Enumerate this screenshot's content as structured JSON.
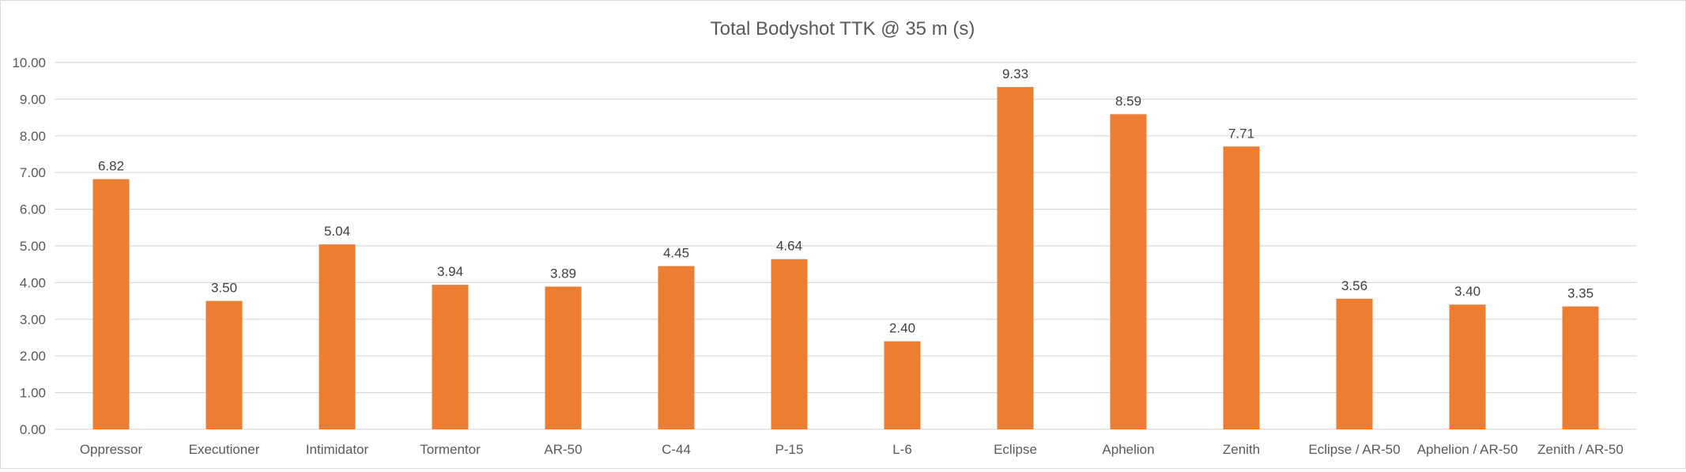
{
  "chart_data": {
    "type": "bar",
    "title": "Total Bodyshot TTK @ 35 m (s)",
    "xlabel": "",
    "ylabel": "",
    "ylim": [
      0,
      10
    ],
    "ytick_step": 1,
    "ytick_labels": [
      "0.00",
      "1.00",
      "2.00",
      "3.00",
      "4.00",
      "5.00",
      "6.00",
      "7.00",
      "8.00",
      "9.00",
      "10.00"
    ],
    "grid": true,
    "legend": "none",
    "categories": [
      "Oppressor",
      "Executioner",
      "Intimidator",
      "Tormentor",
      "AR-50",
      "C-44",
      "P-15",
      "L-6",
      "Eclipse",
      "Aphelion",
      "Zenith",
      "Eclipse / AR-50",
      "Aphelion / AR-50",
      "Zenith / AR-50"
    ],
    "values": [
      6.82,
      3.5,
      5.04,
      3.94,
      3.89,
      4.45,
      4.64,
      2.4,
      9.33,
      8.59,
      7.71,
      3.56,
      3.4,
      3.35
    ],
    "value_labels": [
      "6.82",
      "3.50",
      "5.04",
      "3.94",
      "3.89",
      "4.45",
      "4.64",
      "2.40",
      "9.33",
      "8.59",
      "7.71",
      "3.56",
      "3.40",
      "3.35"
    ],
    "bar_color": "#ED7D31",
    "grid_color": "#D9D9D9"
  }
}
